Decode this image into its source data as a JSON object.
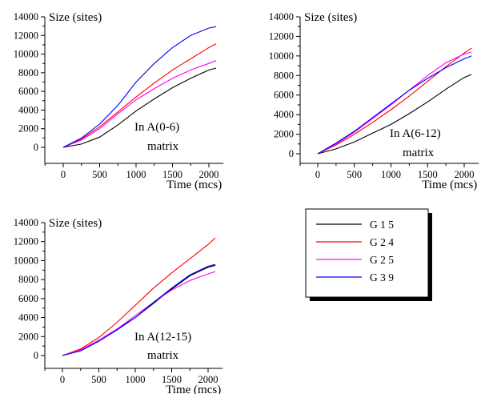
{
  "chart_data": [
    {
      "type": "line",
      "ylabel": "Size (sites)",
      "xlabel": "Time (mcs)",
      "annotation": [
        "In A(0-6)",
        "matrix"
      ],
      "xticks": [
        0,
        500,
        1000,
        1500,
        2000
      ],
      "yticks": [
        0,
        2000,
        4000,
        6000,
        8000,
        10000,
        12000,
        14000
      ],
      "xlim": [
        -200,
        2200
      ],
      "ylim": [
        -800,
        14000
      ],
      "series": [
        {
          "name": "G 1 5",
          "color": "#000000",
          "x": [
            0,
            250,
            500,
            750,
            1000,
            1250,
            1500,
            1750,
            2000,
            2100
          ],
          "y": [
            0,
            350,
            1100,
            2400,
            3900,
            5200,
            6400,
            7400,
            8300,
            8500
          ]
        },
        {
          "name": "G 2 4",
          "color": "#ff0000",
          "x": [
            0,
            250,
            500,
            750,
            1000,
            1250,
            1500,
            1750,
            2000,
            2100
          ],
          "y": [
            0,
            900,
            2200,
            3800,
            5400,
            6900,
            8300,
            9500,
            10700,
            11100
          ]
        },
        {
          "name": "G 2 5",
          "color": "#ff00ff",
          "x": [
            0,
            250,
            500,
            750,
            1000,
            1250,
            1500,
            1750,
            2000,
            2100
          ],
          "y": [
            0,
            800,
            2000,
            3600,
            5100,
            6300,
            7400,
            8300,
            9000,
            9300
          ]
        },
        {
          "name": "G 3 9",
          "color": "#0000ff",
          "x": [
            0,
            250,
            500,
            750,
            1000,
            1250,
            1500,
            1750,
            2000,
            2100
          ],
          "y": [
            0,
            1000,
            2500,
            4500,
            7000,
            9000,
            10700,
            12000,
            12800,
            12950
          ]
        }
      ]
    },
    {
      "type": "line",
      "ylabel": "Size (sites)",
      "xlabel": "Time (mcs)",
      "annotation": [
        "In A(6-12)",
        "matrix"
      ],
      "xticks": [
        0,
        500,
        1000,
        1500,
        2000
      ],
      "yticks": [
        0,
        2000,
        4000,
        6000,
        8000,
        10000,
        12000,
        14000
      ],
      "xlim": [
        -200,
        2200
      ],
      "ylim": [
        -800,
        14000
      ],
      "series": [
        {
          "name": "G 1 5",
          "color": "#000000",
          "x": [
            0,
            250,
            500,
            750,
            1000,
            1250,
            1500,
            1750,
            2000,
            2100
          ],
          "y": [
            0,
            500,
            1200,
            2100,
            3000,
            4100,
            5300,
            6600,
            7800,
            8100
          ]
        },
        {
          "name": "G 2 4",
          "color": "#ff0000",
          "x": [
            0,
            250,
            500,
            750,
            1000,
            1250,
            1500,
            1750,
            2000,
            2100
          ],
          "y": [
            0,
            900,
            2000,
            3200,
            4500,
            5900,
            7400,
            8900,
            10300,
            10800
          ]
        },
        {
          "name": "G 2 5",
          "color": "#ff00ff",
          "x": [
            0,
            250,
            500,
            750,
            1000,
            1250,
            1500,
            1750,
            2000,
            2100
          ],
          "y": [
            0,
            1000,
            2200,
            3600,
            5000,
            6500,
            8000,
            9300,
            10200,
            10400
          ]
        },
        {
          "name": "G 3 9",
          "color": "#0000ff",
          "x": [
            0,
            250,
            500,
            750,
            1000,
            1250,
            1500,
            1750,
            2000,
            2100
          ],
          "y": [
            0,
            1100,
            2300,
            3700,
            5100,
            6500,
            7700,
            8800,
            9700,
            10000
          ]
        }
      ]
    },
    {
      "type": "line",
      "ylabel": "Size (sites)",
      "xlabel": "Time (mcs)",
      "annotation": [
        "In A(12-15)",
        "matrix"
      ],
      "xticks": [
        0,
        500,
        1000,
        1500,
        2000
      ],
      "yticks": [
        0,
        2000,
        4000,
        6000,
        8000,
        10000,
        12000,
        14000
      ],
      "xlim": [
        -200,
        2200
      ],
      "ylim": [
        -800,
        14000
      ],
      "series": [
        {
          "name": "G 1 5",
          "color": "#000000",
          "x": [
            0,
            250,
            500,
            750,
            1000,
            1250,
            1500,
            1750,
            2000,
            2100
          ],
          "y": [
            0,
            600,
            1600,
            2800,
            4000,
            5500,
            7000,
            8400,
            9300,
            9500
          ]
        },
        {
          "name": "G 2 4",
          "color": "#ff0000",
          "x": [
            0,
            250,
            500,
            750,
            1000,
            1250,
            1500,
            1750,
            2000,
            2100
          ],
          "y": [
            0,
            700,
            1900,
            3500,
            5300,
            7100,
            8700,
            10200,
            11700,
            12400
          ]
        },
        {
          "name": "G 2 5",
          "color": "#ff00ff",
          "x": [
            0,
            250,
            500,
            750,
            1000,
            1250,
            1500,
            1750,
            2000,
            2100
          ],
          "y": [
            0,
            600,
            1600,
            2800,
            4200,
            5600,
            6900,
            7900,
            8600,
            8850
          ]
        },
        {
          "name": "G 3 9",
          "color": "#0000ff",
          "x": [
            0,
            250,
            500,
            750,
            1000,
            1250,
            1500,
            1750,
            2000,
            2100
          ],
          "y": [
            0,
            500,
            1500,
            2700,
            4000,
            5600,
            7100,
            8500,
            9400,
            9600
          ]
        }
      ]
    }
  ],
  "legend": {
    "entries": [
      {
        "label": "G 1 5",
        "color": "#000000"
      },
      {
        "label": "G 2 4",
        "color": "#ff0000"
      },
      {
        "label": "G 2 5",
        "color": "#ff00ff"
      },
      {
        "label": "G 3 9",
        "color": "#0000ff"
      }
    ]
  }
}
